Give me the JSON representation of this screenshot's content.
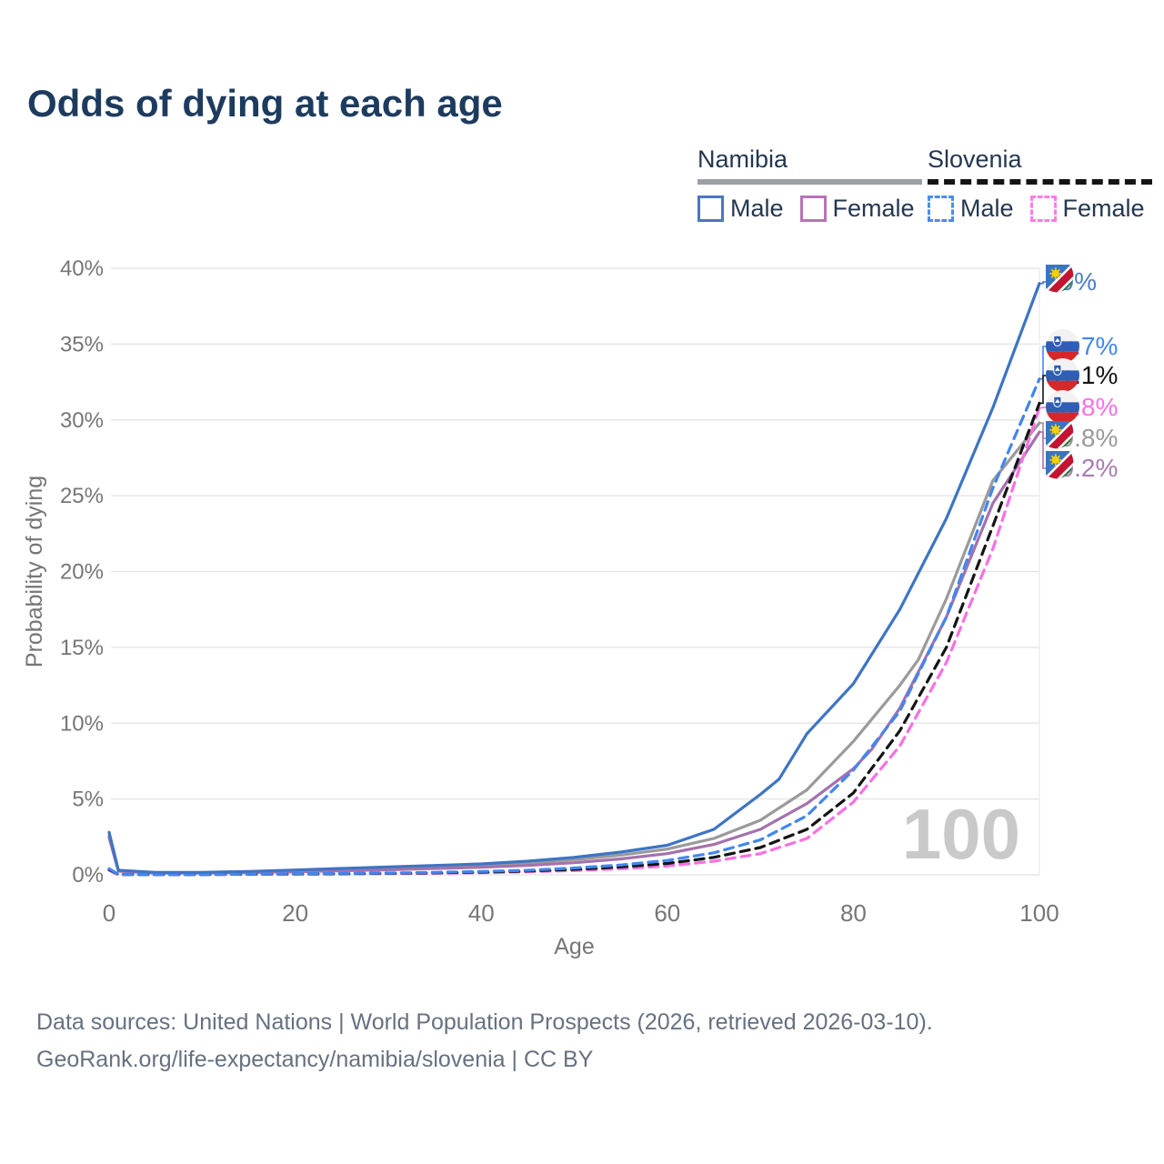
{
  "title": "Odds of dying at each age",
  "legend": {
    "groups": [
      {
        "country": "Namibia",
        "line_style": "solid",
        "line_color": "#9aa0a6",
        "items": [
          {
            "label": "Male",
            "color": "#4a77c0",
            "dash": false
          },
          {
            "label": "Female",
            "color": "#b873b8",
            "dash": false
          }
        ]
      },
      {
        "country": "Slovenia",
        "line_style": "dashed",
        "line_color": "#141414",
        "items": [
          {
            "label": "Male",
            "color": "#4b8df0",
            "dash": true
          },
          {
            "label": "Female",
            "color": "#fc7cea",
            "dash": true
          }
        ]
      }
    ]
  },
  "sources": {
    "line1": "Data sources: United Nations | World Population Prospects (2026, retrieved 2026-03-10).",
    "line2": "GeoRank.org/life-expectancy/namibia/slovenia | CC BY"
  },
  "chart_data": {
    "type": "line",
    "title": "Odds of dying at each age",
    "xlabel": "Age",
    "ylabel": "Probability of dying",
    "xlim": [
      0,
      100
    ],
    "ylim": [
      0,
      40
    ],
    "xticks": [
      0,
      20,
      40,
      60,
      80,
      100
    ],
    "yticks": [
      0,
      5,
      10,
      15,
      20,
      25,
      30,
      35,
      40
    ],
    "ytick_suffix": "%",
    "grid": "horizontal",
    "legend_position": "top-right",
    "watermark": "100",
    "series": [
      {
        "name": "Namibia Both sexes",
        "country": "namibia",
        "sex": "both",
        "color": "#9a9a9a",
        "dash": false,
        "end_value": 29.8,
        "end_label": "29.8%",
        "label_color": "#9a9a9a",
        "points": [
          [
            0,
            2.6
          ],
          [
            1,
            0.27
          ],
          [
            5,
            0.14
          ],
          [
            10,
            0.14
          ],
          [
            15,
            0.18
          ],
          [
            20,
            0.26
          ],
          [
            25,
            0.34
          ],
          [
            30,
            0.42
          ],
          [
            35,
            0.52
          ],
          [
            40,
            0.62
          ],
          [
            45,
            0.78
          ],
          [
            50,
            1.0
          ],
          [
            55,
            1.3
          ],
          [
            60,
            1.7
          ],
          [
            65,
            2.4
          ],
          [
            70,
            3.6
          ],
          [
            75,
            5.6
          ],
          [
            80,
            8.8
          ],
          [
            85,
            12.5
          ],
          [
            87,
            14.2
          ],
          [
            90,
            18.2
          ],
          [
            95,
            26.0
          ],
          [
            100,
            29.8
          ]
        ]
      },
      {
        "name": "Namibia Female",
        "country": "namibia",
        "sex": "female",
        "color": "#a571ae",
        "dash": false,
        "end_value": 29.2,
        "end_label": "29.2%",
        "label_color": "#a87cb4",
        "points": [
          [
            0,
            2.45
          ],
          [
            1,
            0.24
          ],
          [
            5,
            0.12
          ],
          [
            10,
            0.12
          ],
          [
            15,
            0.15
          ],
          [
            20,
            0.2
          ],
          [
            25,
            0.27
          ],
          [
            30,
            0.33
          ],
          [
            35,
            0.42
          ],
          [
            40,
            0.5
          ],
          [
            45,
            0.62
          ],
          [
            50,
            0.8
          ],
          [
            55,
            1.05
          ],
          [
            60,
            1.4
          ],
          [
            65,
            2.0
          ],
          [
            70,
            3.0
          ],
          [
            75,
            4.7
          ],
          [
            80,
            7.0
          ],
          [
            82,
            8.3
          ],
          [
            85,
            11.0
          ],
          [
            90,
            17.0
          ],
          [
            95,
            24.5
          ],
          [
            100,
            29.2
          ]
        ]
      },
      {
        "name": "Namibia Male",
        "country": "namibia",
        "sex": "male",
        "color": "#3d74c4",
        "dash": false,
        "end_value": 39,
        "end_label": "39%",
        "label_color": "#4a7dc9",
        "points": [
          [
            0,
            2.8
          ],
          [
            1,
            0.3
          ],
          [
            5,
            0.16
          ],
          [
            10,
            0.16
          ],
          [
            15,
            0.22
          ],
          [
            20,
            0.32
          ],
          [
            25,
            0.42
          ],
          [
            30,
            0.52
          ],
          [
            35,
            0.62
          ],
          [
            40,
            0.72
          ],
          [
            45,
            0.9
          ],
          [
            50,
            1.15
          ],
          [
            55,
            1.5
          ],
          [
            60,
            1.95
          ],
          [
            65,
            3.0
          ],
          [
            70,
            5.3
          ],
          [
            72,
            6.3
          ],
          [
            75,
            9.3
          ],
          [
            80,
            12.6
          ],
          [
            85,
            17.5
          ],
          [
            90,
            23.5
          ],
          [
            95,
            30.8
          ],
          [
            100,
            39.0
          ]
        ]
      },
      {
        "name": "Slovenia Female",
        "country": "slovenia",
        "sex": "female",
        "color": "#fb6fe3",
        "dash": true,
        "end_value": 30.8,
        "end_label": "30.8%",
        "label_color": "#fb6fe3",
        "points": [
          [
            0,
            0.3
          ],
          [
            1,
            0.02
          ],
          [
            5,
            0.015
          ],
          [
            10,
            0.015
          ],
          [
            15,
            0.03
          ],
          [
            20,
            0.05
          ],
          [
            25,
            0.06
          ],
          [
            30,
            0.08
          ],
          [
            35,
            0.1
          ],
          [
            40,
            0.14
          ],
          [
            45,
            0.2
          ],
          [
            50,
            0.28
          ],
          [
            55,
            0.4
          ],
          [
            60,
            0.58
          ],
          [
            65,
            0.9
          ],
          [
            70,
            1.4
          ],
          [
            75,
            2.4
          ],
          [
            80,
            4.8
          ],
          [
            85,
            8.5
          ],
          [
            90,
            14.0
          ],
          [
            95,
            21.5
          ],
          [
            100,
            30.8
          ]
        ]
      },
      {
        "name": "Slovenia Both sexes",
        "country": "slovenia",
        "sex": "both",
        "color": "#141414",
        "dash": true,
        "end_value": 31.1,
        "end_label": "31.1%",
        "label_color": "#141414",
        "points": [
          [
            0,
            0.35
          ],
          [
            1,
            0.025
          ],
          [
            5,
            0.02
          ],
          [
            10,
            0.02
          ],
          [
            15,
            0.04
          ],
          [
            20,
            0.06
          ],
          [
            25,
            0.08
          ],
          [
            30,
            0.1
          ],
          [
            35,
            0.13
          ],
          [
            40,
            0.18
          ],
          [
            45,
            0.25
          ],
          [
            50,
            0.36
          ],
          [
            55,
            0.52
          ],
          [
            60,
            0.75
          ],
          [
            65,
            1.15
          ],
          [
            70,
            1.8
          ],
          [
            75,
            3.0
          ],
          [
            80,
            5.4
          ],
          [
            85,
            9.5
          ],
          [
            90,
            15.0
          ],
          [
            95,
            23.0
          ],
          [
            100,
            31.1
          ]
        ]
      },
      {
        "name": "Slovenia Male",
        "country": "slovenia",
        "sex": "male",
        "color": "#4286f0",
        "dash": true,
        "end_value": 32.7,
        "end_label": "32.7%",
        "label_color": "#4286f0",
        "points": [
          [
            0,
            0.4
          ],
          [
            1,
            0.03
          ],
          [
            5,
            0.02
          ],
          [
            10,
            0.02
          ],
          [
            15,
            0.05
          ],
          [
            20,
            0.08
          ],
          [
            25,
            0.1
          ],
          [
            30,
            0.12
          ],
          [
            35,
            0.16
          ],
          [
            40,
            0.22
          ],
          [
            45,
            0.3
          ],
          [
            50,
            0.45
          ],
          [
            55,
            0.65
          ],
          [
            60,
            0.95
          ],
          [
            65,
            1.45
          ],
          [
            70,
            2.3
          ],
          [
            75,
            3.9
          ],
          [
            80,
            6.9
          ],
          [
            85,
            10.8
          ],
          [
            90,
            17.0
          ],
          [
            95,
            25.5
          ],
          [
            100,
            32.7
          ]
        ]
      }
    ]
  }
}
